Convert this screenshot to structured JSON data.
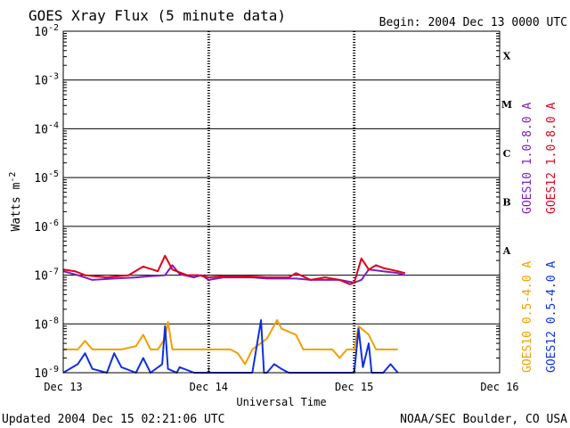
{
  "chart_data": {
    "type": "line",
    "title": "GOES Xray Flux (5 minute data)",
    "begin": "Begin:  2004 Dec 13 0000 UTC",
    "xlabel": "Universal Time",
    "ylabel": "Watts m",
    "ylabel_sup": "-2",
    "yscale": "log",
    "ylim": [
      1e-09,
      0.01
    ],
    "xlim_days": [
      0,
      3
    ],
    "x_ticks": [
      "Dec 13",
      "Dec 14",
      "Dec 15",
      "Dec 16"
    ],
    "y_ticks": [
      {
        "base": "10",
        "exp": "-2"
      },
      {
        "base": "10",
        "exp": "-3"
      },
      {
        "base": "10",
        "exp": "-4"
      },
      {
        "base": "10",
        "exp": "-5"
      },
      {
        "base": "10",
        "exp": "-6"
      },
      {
        "base": "10",
        "exp": "-7"
      },
      {
        "base": "10",
        "exp": "-8"
      },
      {
        "base": "10",
        "exp": "-9"
      }
    ],
    "classes": [
      "X",
      "M",
      "C",
      "B",
      "A"
    ],
    "series": [
      {
        "name": "GOES10 1.0-8.0 A",
        "color": "#7b1fbf",
        "points": [
          [
            0,
            1.2e-07
          ],
          [
            0.1,
            1e-07
          ],
          [
            0.2,
            8e-08
          ],
          [
            0.35,
            8.5e-08
          ],
          [
            0.5,
            9e-08
          ],
          [
            0.6,
            9.5e-08
          ],
          [
            0.7,
            1e-07
          ],
          [
            0.75,
            1.6e-07
          ],
          [
            0.8,
            1.05e-07
          ],
          [
            0.9,
            9e-08
          ],
          [
            0.95,
            1e-07
          ],
          [
            1.0,
            8e-08
          ],
          [
            1.1,
            9e-08
          ],
          [
            1.2,
            9e-08
          ],
          [
            1.3,
            9e-08
          ],
          [
            1.4,
            8.5e-08
          ],
          [
            1.5,
            8.5e-08
          ],
          [
            1.6,
            8.5e-08
          ],
          [
            1.7,
            8e-08
          ],
          [
            1.8,
            8e-08
          ],
          [
            1.9,
            8e-08
          ],
          [
            2.0,
            7e-08
          ],
          [
            2.05,
            8e-08
          ],
          [
            2.1,
            1.3e-07
          ],
          [
            2.2,
            1.2e-07
          ],
          [
            2.3,
            1.1e-07
          ],
          [
            2.35,
            1e-07
          ]
        ]
      },
      {
        "name": "GOES12 1.0-8.0 A",
        "color": "#e0001b",
        "points": [
          [
            0,
            1.3e-07
          ],
          [
            0.08,
            1.2e-07
          ],
          [
            0.15,
            1e-07
          ],
          [
            0.3,
            9e-08
          ],
          [
            0.45,
            1e-07
          ],
          [
            0.55,
            1.5e-07
          ],
          [
            0.65,
            1.2e-07
          ],
          [
            0.7,
            2.5e-07
          ],
          [
            0.75,
            1.3e-07
          ],
          [
            0.85,
            1e-07
          ],
          [
            0.93,
            1e-07
          ],
          [
            1.0,
            9e-08
          ],
          [
            1.1,
            9.5e-08
          ],
          [
            1.25,
            9.5e-08
          ],
          [
            1.4,
            9e-08
          ],
          [
            1.55,
            9e-08
          ],
          [
            1.6,
            1.1e-07
          ],
          [
            1.7,
            8e-08
          ],
          [
            1.8,
            9e-08
          ],
          [
            1.9,
            8e-08
          ],
          [
            1.97,
            6.5e-08
          ],
          [
            2.0,
            7e-08
          ],
          [
            2.05,
            2.2e-07
          ],
          [
            2.1,
            1.3e-07
          ],
          [
            2.15,
            1.6e-07
          ],
          [
            2.2,
            1.4e-07
          ],
          [
            2.3,
            1.2e-07
          ],
          [
            2.35,
            1.1e-07
          ]
        ]
      },
      {
        "name": "GOES10 0.5-4.0 A",
        "color": "#f0a000",
        "points": [
          [
            0,
            3e-09
          ],
          [
            0.1,
            3e-09
          ],
          [
            0.15,
            4.5e-09
          ],
          [
            0.2,
            3e-09
          ],
          [
            0.3,
            3e-09
          ],
          [
            0.4,
            3e-09
          ],
          [
            0.5,
            3.5e-09
          ],
          [
            0.55,
            6e-09
          ],
          [
            0.6,
            3e-09
          ],
          [
            0.65,
            3e-09
          ],
          [
            0.7,
            5e-09
          ],
          [
            0.72,
            1.1e-08
          ],
          [
            0.75,
            3e-09
          ],
          [
            0.8,
            3e-09
          ],
          [
            0.9,
            3e-09
          ],
          [
            1.0,
            3e-09
          ],
          [
            1.1,
            3e-09
          ],
          [
            1.15,
            3e-09
          ],
          [
            1.2,
            2.5e-09
          ],
          [
            1.25,
            1.5e-09
          ],
          [
            1.3,
            3e-09
          ],
          [
            1.4,
            5e-09
          ],
          [
            1.47,
            1.2e-08
          ],
          [
            1.5,
            8e-09
          ],
          [
            1.6,
            6e-09
          ],
          [
            1.65,
            3e-09
          ],
          [
            1.7,
            3e-09
          ],
          [
            1.8,
            3e-09
          ],
          [
            1.85,
            3e-09
          ],
          [
            1.9,
            2e-09
          ],
          [
            1.95,
            3e-09
          ],
          [
            2.0,
            3e-09
          ],
          [
            2.03,
            9e-09
          ],
          [
            2.1,
            6e-09
          ],
          [
            2.15,
            3e-09
          ],
          [
            2.2,
            3e-09
          ],
          [
            2.3,
            3e-09
          ]
        ]
      },
      {
        "name": "GOES12 0.5-4.0 A",
        "color": "#1030e0",
        "points": [
          [
            0,
            1e-09
          ],
          [
            0.1,
            1.5e-09
          ],
          [
            0.15,
            2.5e-09
          ],
          [
            0.2,
            1.2e-09
          ],
          [
            0.3,
            1e-09
          ],
          [
            0.35,
            2.5e-09
          ],
          [
            0.4,
            1.3e-09
          ],
          [
            0.5,
            1e-09
          ],
          [
            0.55,
            2e-09
          ],
          [
            0.6,
            1e-09
          ],
          [
            0.68,
            1.5e-09
          ],
          [
            0.7,
            9e-09
          ],
          [
            0.72,
            1.2e-09
          ],
          [
            0.78,
            1e-09
          ],
          [
            0.8,
            1.3e-09
          ],
          [
            0.9,
            1e-09
          ],
          [
            1.0,
            1e-09
          ],
          [
            1.1,
            1e-09
          ],
          [
            1.2,
            1e-09
          ],
          [
            1.3,
            1e-09
          ],
          [
            1.36,
            1.2e-08
          ],
          [
            1.38,
            1e-09
          ],
          [
            1.4,
            1e-09
          ],
          [
            1.45,
            1.5e-09
          ],
          [
            1.5,
            1.2e-09
          ],
          [
            1.55,
            1e-09
          ],
          [
            1.6,
            1e-09
          ],
          [
            1.65,
            1e-09
          ],
          [
            1.8,
            1e-09
          ],
          [
            1.85,
            1e-09
          ],
          [
            1.9,
            1e-09
          ],
          [
            1.95,
            1e-09
          ],
          [
            2.0,
            1e-09
          ],
          [
            2.03,
            8e-09
          ],
          [
            2.06,
            1.3e-09
          ],
          [
            2.1,
            4e-09
          ],
          [
            2.12,
            1e-09
          ],
          [
            2.2,
            1e-09
          ],
          [
            2.25,
            1.5e-09
          ],
          [
            2.3,
            1e-09
          ]
        ]
      }
    ]
  },
  "footer": {
    "updated": "Updated 2004 Dec 15 02:21:06 UTC",
    "source": "NOAA/SEC Boulder, CO USA"
  }
}
